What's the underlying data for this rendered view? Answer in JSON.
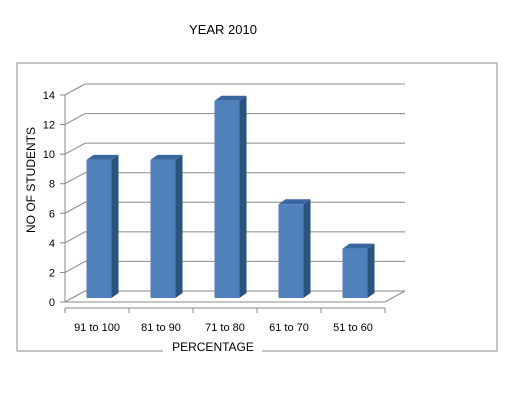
{
  "chart_data": {
    "type": "bar",
    "title": "YEAR 2010",
    "xlabel": "PERCENTAGE",
    "ylabel": "NO OF STUDENTS",
    "categories": [
      "91 to 100",
      "81 to 90",
      "71 to 80",
      "61 to 70",
      "51 to 60"
    ],
    "values": [
      9,
      9,
      13,
      6,
      3
    ],
    "ylim": [
      0,
      14
    ],
    "yticks": [
      0,
      2,
      4,
      6,
      8,
      10,
      12,
      14
    ],
    "grid": true,
    "legend": "none",
    "bar_color": "#4F81BD",
    "bar_side_color": "#2C5380",
    "bar_top_color": "#3A66A0"
  }
}
